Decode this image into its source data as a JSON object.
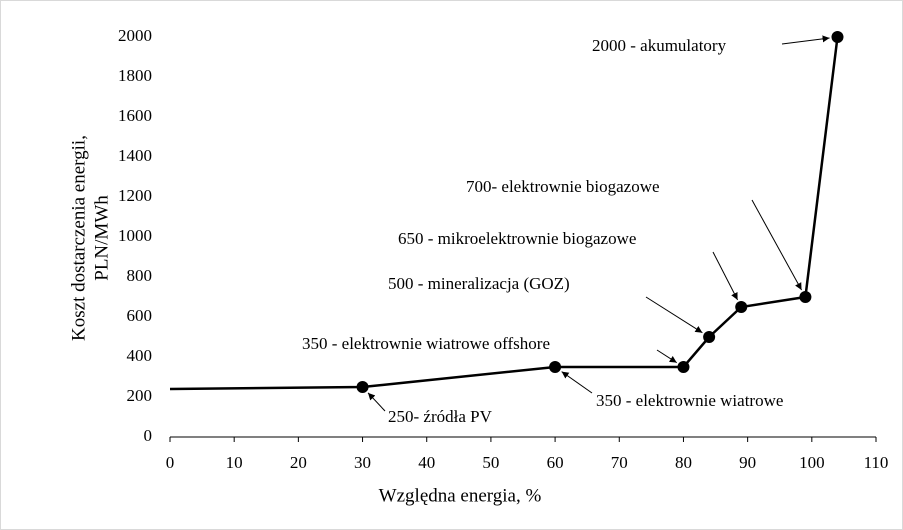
{
  "chart_data": {
    "type": "line",
    "y_label": [
      "Koszt dostarczenia energii,",
      "PLN/MWh"
    ],
    "x_label": "Względna energia, %",
    "x": [
      0,
      30,
      60,
      80,
      84,
      89,
      99,
      104
    ],
    "series": [
      {
        "color": "#000000",
        "values": [
          240,
          250,
          350,
          350,
          500,
          650,
          700,
          2000
        ]
      }
    ],
    "annotations": [
      {
        "text": "250- źródła PV"
      },
      {
        "text": "350 - elektrownie wiatrowe offshore"
      },
      {
        "text": "350 - elektrownie wiatrowe"
      },
      {
        "text": "500 - mineralizacja (GOZ)"
      },
      {
        "text": "650 - mikroelektrownie biogazowe"
      },
      {
        "text": "700- elektrownie biogazowe"
      },
      {
        "text": "2000 - akumulatory"
      }
    ],
    "xlim": [
      0,
      110
    ],
    "xticks": [
      0,
      10,
      20,
      30,
      40,
      50,
      60,
      70,
      80,
      90,
      100,
      110
    ],
    "ylim": [
      0,
      2000
    ],
    "yticks": [
      0,
      200,
      400,
      600,
      800,
      1000,
      1200,
      1400,
      1600,
      1800,
      2000
    ],
    "grid": false
  }
}
